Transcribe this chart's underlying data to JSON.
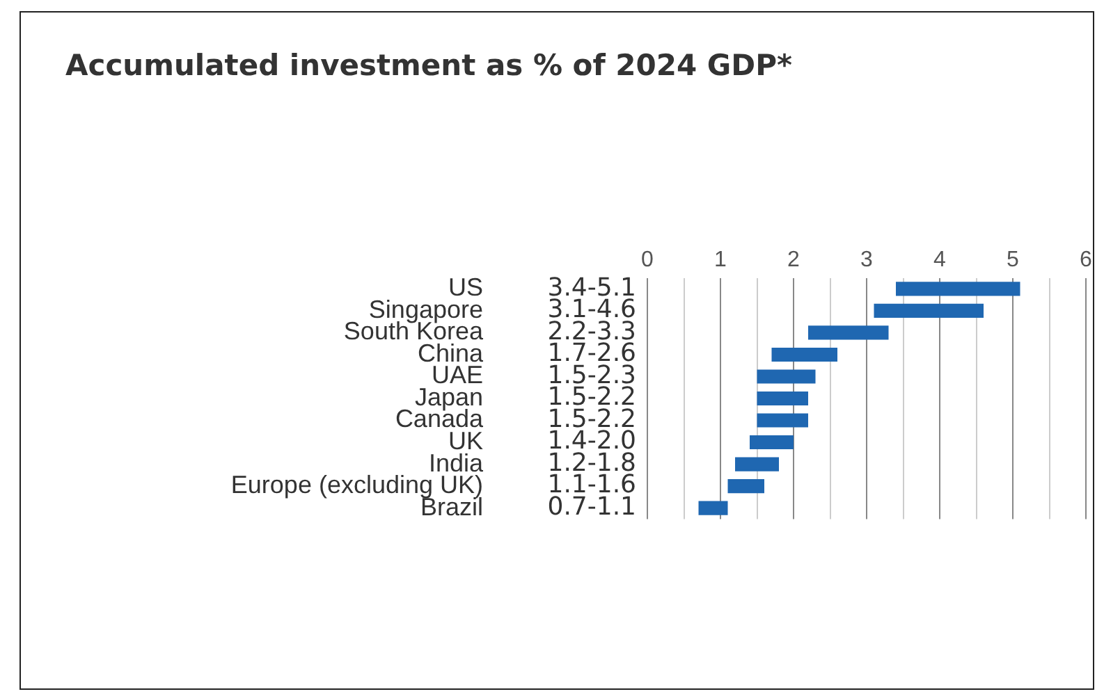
{
  "chart_data": {
    "type": "bar",
    "orientation": "horizontal",
    "title": "Accumulated investment as % of 2024 GDP*",
    "categories": [
      "US",
      "Singapore",
      "South Korea",
      "China",
      "UAE",
      "Japan",
      "Canada",
      "UK",
      "India",
      "Europe (excluding UK)",
      "Brazil"
    ],
    "base": [
      3.4,
      3.1,
      2.2,
      1.7,
      1.5,
      1.5,
      1.5,
      1.4,
      1.2,
      1.1,
      0.7
    ],
    "values": [
      1.7,
      1.5,
      1.1,
      0.9,
      0.8,
      0.7,
      0.7,
      0.6,
      0.6,
      0.5,
      0.4
    ],
    "value_labels": [
      "3.4-5.1",
      "3.1-4.6",
      "2.2-3.3",
      "1.7-2.6",
      "1.5-2.3",
      "1.5-2.2",
      "1.5-2.2",
      "1.4-2.0",
      "1.2-1.8",
      "1.1-1.6",
      "0.7-1.1"
    ],
    "color": "#1f67b1",
    "xlim": [
      0,
      6
    ],
    "xticks": [
      0,
      {
        "value": 0.5,
        "label": null
      },
      1,
      {
        "value": 1.5,
        "label": null
      },
      2,
      {
        "value": 2.5,
        "label": null
      },
      3,
      {
        "value": 3.5,
        "label": null
      },
      4,
      {
        "value": 4.5,
        "label": null
      },
      5,
      {
        "value": 5.5,
        "label": null
      },
      6
    ],
    "grid": "x"
  }
}
